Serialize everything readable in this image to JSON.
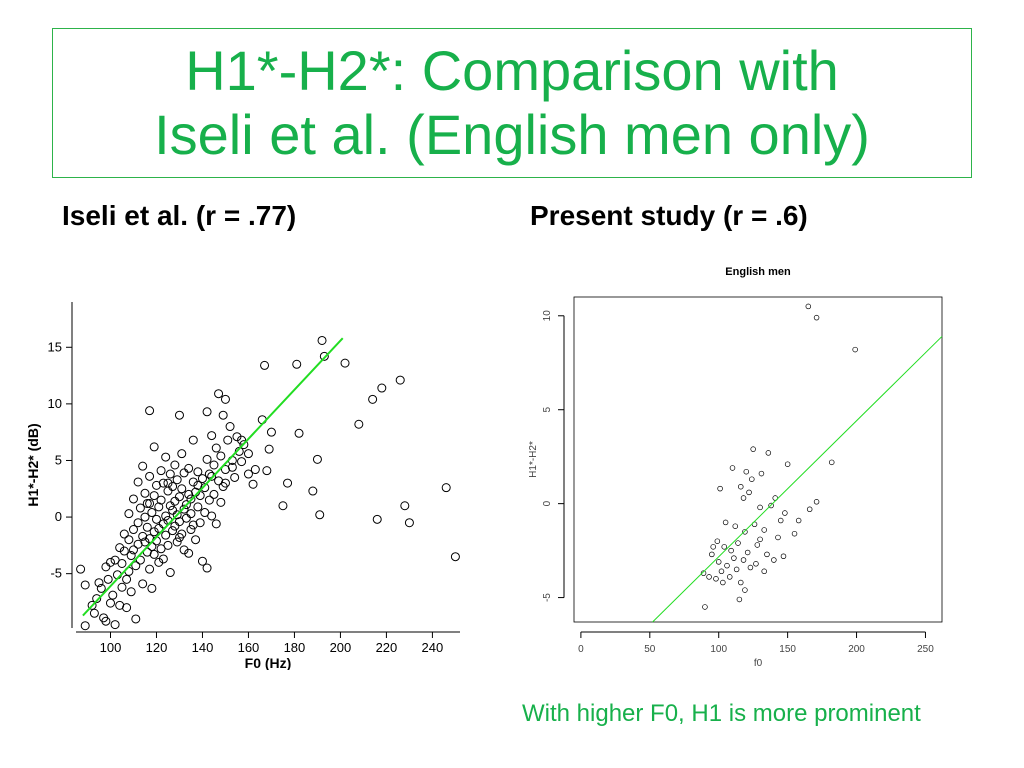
{
  "slide": {
    "title_line1": "H1*-H2*: Comparison with",
    "title_line2": "Iseli et al. (English men only)",
    "left_heading": "Iseli et al. (r = .77)",
    "right_heading": "Present study (r = .6)",
    "footnote": "With higher F0, H1 is more prominent",
    "accent_color": "#17b04b",
    "fit_line_color": "#22dd22"
  },
  "chart_data": [
    {
      "type": "scatter",
      "title": "",
      "xlabel": "F0 (Hz)",
      "ylabel": "H1*-H2* (dB)",
      "xlim": [
        85,
        252
      ],
      "ylim": [
        -9.8,
        19
      ],
      "xticks": [
        100,
        120,
        140,
        160,
        180,
        200,
        220,
        240
      ],
      "yticks": [
        -5,
        0,
        5,
        10,
        15
      ],
      "grid": false,
      "fit_line": {
        "x": [
          88,
          201
        ],
        "y": [
          -8.7,
          15.8
        ]
      },
      "points": [
        [
          87,
          -4.6
        ],
        [
          89,
          -6.0
        ],
        [
          89,
          -9.6
        ],
        [
          92,
          -7.8
        ],
        [
          93,
          -8.5
        ],
        [
          94,
          -7.2
        ],
        [
          95,
          -5.8
        ],
        [
          96,
          -6.3
        ],
        [
          97,
          -8.9
        ],
        [
          98,
          -4.4
        ],
        [
          98,
          -9.2
        ],
        [
          99,
          -5.5
        ],
        [
          100,
          -7.6
        ],
        [
          100,
          -4.0
        ],
        [
          101,
          -6.9
        ],
        [
          102,
          -3.8
        ],
        [
          102,
          -9.5
        ],
        [
          103,
          -5.1
        ],
        [
          104,
          -2.7
        ],
        [
          104,
          -7.8
        ],
        [
          105,
          -6.2
        ],
        [
          105,
          -4.1
        ],
        [
          106,
          -3.0
        ],
        [
          106,
          -1.5
        ],
        [
          107,
          -5.5
        ],
        [
          107,
          -8.0
        ],
        [
          108,
          -2.0
        ],
        [
          108,
          -4.8
        ],
        [
          108,
          0.3
        ],
        [
          109,
          -3.4
        ],
        [
          109,
          -6.6
        ],
        [
          110,
          -1.1
        ],
        [
          110,
          -2.9
        ],
        [
          110,
          1.6
        ],
        [
          111,
          -4.3
        ],
        [
          111,
          -9.0
        ],
        [
          112,
          -0.5
        ],
        [
          112,
          -2.4
        ],
        [
          112,
          3.1
        ],
        [
          113,
          -3.8
        ],
        [
          113,
          0.8
        ],
        [
          114,
          -1.7
        ],
        [
          114,
          -5.9
        ],
        [
          114,
          4.5
        ],
        [
          115,
          -2.2
        ],
        [
          115,
          0.0
        ],
        [
          115,
          2.1
        ],
        [
          116,
          -3.1
        ],
        [
          116,
          -0.9
        ],
        [
          116,
          1.2
        ],
        [
          117,
          9.4
        ],
        [
          117,
          -4.6
        ],
        [
          117,
          -1.9
        ],
        [
          117,
          3.6
        ],
        [
          118,
          -2.6
        ],
        [
          118,
          0.4
        ],
        [
          118,
          -6.3
        ],
        [
          119,
          6.2
        ],
        [
          119,
          -1.3
        ],
        [
          119,
          1.9
        ],
        [
          119,
          -3.3
        ],
        [
          120,
          -0.2
        ],
        [
          120,
          -2.1
        ],
        [
          120,
          2.8
        ],
        [
          121,
          -4.0
        ],
        [
          121,
          0.9
        ],
        [
          121,
          -1.0
        ],
        [
          122,
          4.1
        ],
        [
          122,
          -2.8
        ],
        [
          122,
          1.5
        ],
        [
          123,
          -0.6
        ],
        [
          123,
          3.0
        ],
        [
          123,
          -3.7
        ],
        [
          124,
          0.1
        ],
        [
          124,
          5.3
        ],
        [
          124,
          -1.6
        ],
        [
          125,
          2.3
        ],
        [
          125,
          -0.3
        ],
        [
          125,
          -2.5
        ],
        [
          126,
          1.0
        ],
        [
          126,
          3.8
        ],
        [
          126,
          -4.9
        ],
        [
          127,
          0.6
        ],
        [
          127,
          -1.2
        ],
        [
          127,
          2.7
        ],
        [
          128,
          -0.8
        ],
        [
          128,
          4.6
        ],
        [
          128,
          1.4
        ],
        [
          129,
          -2.2
        ],
        [
          129,
          0.2
        ],
        [
          129,
          3.3
        ],
        [
          130,
          9.0
        ],
        [
          130,
          -0.4
        ],
        [
          130,
          1.8
        ],
        [
          131,
          -1.5
        ],
        [
          131,
          2.5
        ],
        [
          131,
          5.6
        ],
        [
          132,
          0.7
        ],
        [
          132,
          -2.9
        ],
        [
          132,
          3.9
        ],
        [
          133,
          1.1
        ],
        [
          133,
          -0.1
        ],
        [
          134,
          2.0
        ],
        [
          134,
          -3.2
        ],
        [
          134,
          4.3
        ],
        [
          135,
          0.3
        ],
        [
          135,
          1.6
        ],
        [
          135,
          -1.1
        ],
        [
          136,
          3.1
        ],
        [
          136,
          6.8
        ],
        [
          136,
          -0.7
        ],
        [
          137,
          2.2
        ],
        [
          137,
          -2.0
        ],
        [
          138,
          0.9
        ],
        [
          138,
          4.0
        ],
        [
          139,
          1.9
        ],
        [
          139,
          -0.5
        ],
        [
          140,
          3.4
        ],
        [
          140,
          -3.9
        ],
        [
          141,
          2.6
        ],
        [
          141,
          0.4
        ],
        [
          142,
          9.3
        ],
        [
          142,
          5.1
        ],
        [
          142,
          -4.5
        ],
        [
          143,
          1.5
        ],
        [
          143,
          3.8
        ],
        [
          144,
          7.2
        ],
        [
          144,
          0.1
        ],
        [
          145,
          4.6
        ],
        [
          145,
          2.0
        ],
        [
          146,
          6.1
        ],
        [
          146,
          -0.6
        ],
        [
          147,
          3.2
        ],
        [
          147,
          10.9
        ],
        [
          148,
          5.4
        ],
        [
          148,
          1.3
        ],
        [
          149,
          9.0
        ],
        [
          149,
          2.7
        ],
        [
          150,
          10.4
        ],
        [
          150,
          4.2
        ],
        [
          151,
          6.8
        ],
        [
          152,
          8.0
        ],
        [
          153,
          5.0
        ],
        [
          154,
          3.5
        ],
        [
          155,
          7.1
        ],
        [
          156,
          5.8
        ],
        [
          157,
          4.9
        ],
        [
          158,
          6.4
        ],
        [
          160,
          3.8
        ],
        [
          162,
          2.9
        ],
        [
          166,
          8.6
        ],
        [
          167,
          13.4
        ],
        [
          168,
          4.1
        ],
        [
          169,
          6.0
        ],
        [
          170,
          7.5
        ],
        [
          175,
          1.0
        ],
        [
          177,
          3.0
        ],
        [
          181,
          13.5
        ],
        [
          182,
          7.4
        ],
        [
          188,
          2.3
        ],
        [
          190,
          5.1
        ],
        [
          191,
          0.2
        ],
        [
          192,
          15.6
        ],
        [
          193,
          14.2
        ],
        [
          202,
          13.6
        ],
        [
          208,
          8.2
        ],
        [
          214,
          10.4
        ],
        [
          216,
          -0.2
        ],
        [
          218,
          11.4
        ],
        [
          226,
          12.1
        ],
        [
          228,
          1.0
        ],
        [
          230,
          -0.5
        ],
        [
          246,
          2.6
        ],
        [
          250,
          -3.5
        ],
        [
          117,
          1.2
        ],
        [
          125,
          3.0
        ],
        [
          130,
          -1.8
        ],
        [
          138,
          2.8
        ],
        [
          144,
          3.6
        ],
        [
          150,
          3.0
        ],
        [
          153,
          4.4
        ],
        [
          157,
          6.8
        ],
        [
          160,
          5.6
        ],
        [
          163,
          4.2
        ]
      ]
    },
    {
      "type": "scatter",
      "title": "English men",
      "xlabel": "f0",
      "ylabel": "H1*-H2*",
      "xlim": [
        -5,
        262
      ],
      "ylim": [
        -6.3,
        11
      ],
      "xticks": [
        0,
        50,
        100,
        150,
        200,
        250
      ],
      "yticks": [
        -5,
        0,
        5,
        10
      ],
      "grid": false,
      "fit_line": {
        "x": [
          52,
          262
        ],
        "y": [
          -6.3,
          8.9
        ]
      },
      "points": [
        [
          165,
          10.5
        ],
        [
          171,
          9.9
        ],
        [
          199,
          8.2
        ],
        [
          125,
          2.9
        ],
        [
          136,
          2.7
        ],
        [
          150,
          2.1
        ],
        [
          182,
          2.2
        ],
        [
          110,
          1.9
        ],
        [
          120,
          1.7
        ],
        [
          131,
          1.6
        ],
        [
          124,
          1.3
        ],
        [
          116,
          0.9
        ],
        [
          141,
          0.3
        ],
        [
          166,
          -0.3
        ],
        [
          171,
          0.1
        ],
        [
          101,
          0.8
        ],
        [
          118,
          0.3
        ],
        [
          122,
          0.6
        ],
        [
          130,
          -0.2
        ],
        [
          138,
          -0.1
        ],
        [
          148,
          -0.5
        ],
        [
          158,
          -0.9
        ],
        [
          105,
          -1.0
        ],
        [
          112,
          -1.2
        ],
        [
          119,
          -1.5
        ],
        [
          126,
          -1.1
        ],
        [
          133,
          -1.4
        ],
        [
          143,
          -1.8
        ],
        [
          155,
          -1.6
        ],
        [
          99,
          -2.0
        ],
        [
          104,
          -2.3
        ],
        [
          109,
          -2.5
        ],
        [
          114,
          -2.1
        ],
        [
          121,
          -2.6
        ],
        [
          128,
          -2.2
        ],
        [
          135,
          -2.7
        ],
        [
          140,
          -3.0
        ],
        [
          147,
          -2.8
        ],
        [
          95,
          -2.7
        ],
        [
          100,
          -3.1
        ],
        [
          106,
          -3.3
        ],
        [
          113,
          -3.5
        ],
        [
          118,
          -3.0
        ],
        [
          123,
          -3.4
        ],
        [
          127,
          -3.2
        ],
        [
          133,
          -3.6
        ],
        [
          89,
          -3.7
        ],
        [
          93,
          -3.9
        ],
        [
          98,
          -4.0
        ],
        [
          103,
          -4.2
        ],
        [
          108,
          -3.9
        ],
        [
          116,
          -4.2
        ],
        [
          90,
          -5.5
        ],
        [
          115,
          -5.1
        ],
        [
          119,
          -4.6
        ],
        [
          102,
          -3.6
        ],
        [
          111,
          -2.9
        ],
        [
          96,
          -2.3
        ],
        [
          130,
          -1.9
        ],
        [
          145,
          -0.9
        ]
      ]
    }
  ]
}
